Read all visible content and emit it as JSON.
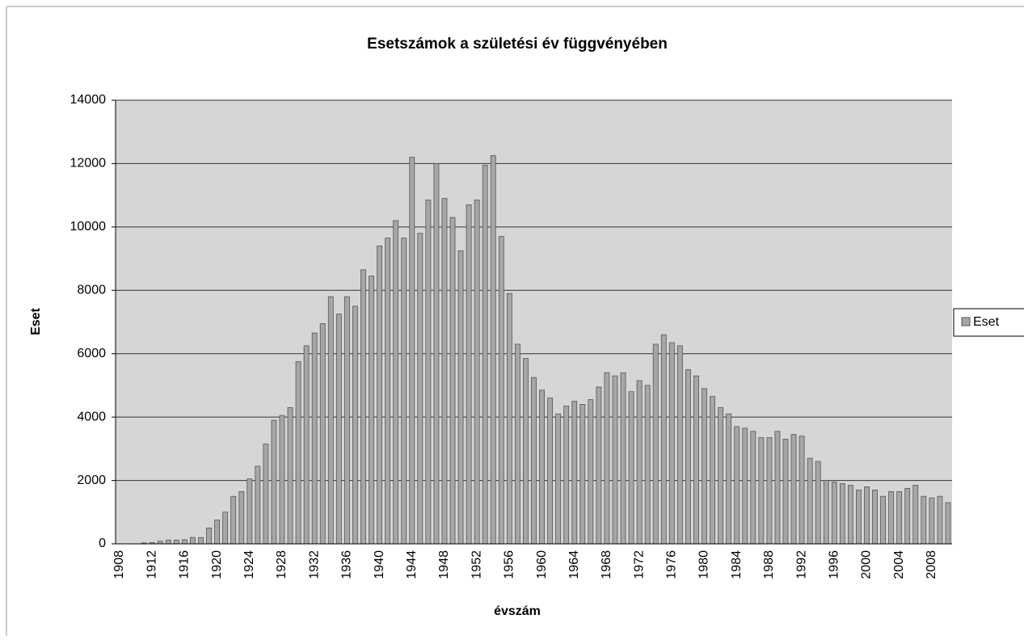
{
  "chart_data": {
    "type": "bar",
    "title": "Esetszámok a születési év függvényében",
    "xlabel": "évszám",
    "ylabel": "Eset",
    "categories": [
      "1908",
      null,
      null,
      null,
      "1912",
      null,
      null,
      null,
      "1916",
      null,
      null,
      null,
      "1920",
      null,
      null,
      null,
      "1924",
      null,
      null,
      null,
      "1928",
      null,
      null,
      null,
      "1932",
      null,
      null,
      null,
      "1936",
      null,
      null,
      null,
      "1940",
      null,
      null,
      null,
      "1944",
      null,
      null,
      null,
      "1948",
      null,
      null,
      null,
      "1952",
      null,
      null,
      null,
      "1956",
      null,
      null,
      null,
      "1960",
      null,
      null,
      null,
      "1964",
      null,
      null,
      null,
      "1968",
      null,
      null,
      null,
      "1972",
      null,
      null,
      null,
      "1976",
      null,
      null,
      null,
      "1980",
      null,
      null,
      null,
      "1984",
      null,
      null,
      null,
      "1988",
      null,
      null,
      null,
      "1992",
      null,
      null,
      null,
      "1996",
      null,
      null,
      null,
      "2000",
      null,
      null,
      null,
      "2004",
      null,
      null,
      null,
      "2008",
      null,
      null
    ],
    "series": [
      {
        "name": "Eset",
        "color": "#a6a6a6",
        "values": [
          0,
          0,
          0,
          30,
          40,
          80,
          120,
          120,
          130,
          200,
          200,
          500,
          750,
          1000,
          1500,
          1650,
          2050,
          2450,
          3150,
          3900,
          4050,
          4300,
          5750,
          6250,
          6650,
          6950,
          7800,
          7250,
          7800,
          7500,
          8650,
          8450,
          9400,
          9650,
          10200,
          9650,
          12200,
          9800,
          10850,
          12000,
          10900,
          10300,
          9250,
          10700,
          10850,
          11950,
          12250,
          9700,
          7900,
          6300,
          5850,
          5250,
          4850,
          4600,
          4100,
          4350,
          4500,
          4400,
          4550,
          4950,
          5400,
          5300,
          5400,
          4800,
          5150,
          5000,
          6300,
          6600,
          6350,
          6250,
          5500,
          5300,
          4900,
          4650,
          4300,
          4100,
          3700,
          3650,
          3550,
          3350,
          3350,
          3550,
          3300,
          3450,
          3400,
          2700,
          2600,
          2000,
          1950,
          1900,
          1850,
          1700,
          1800,
          1700,
          1500,
          1650,
          1650,
          1750,
          1850,
          1500,
          1450,
          1500,
          1300
        ]
      }
    ],
    "ylim": [
      0,
      14000
    ],
    "yticks": [
      0,
      2000,
      4000,
      6000,
      8000,
      10000,
      12000,
      14000
    ],
    "grid": true,
    "legend": "right"
  }
}
